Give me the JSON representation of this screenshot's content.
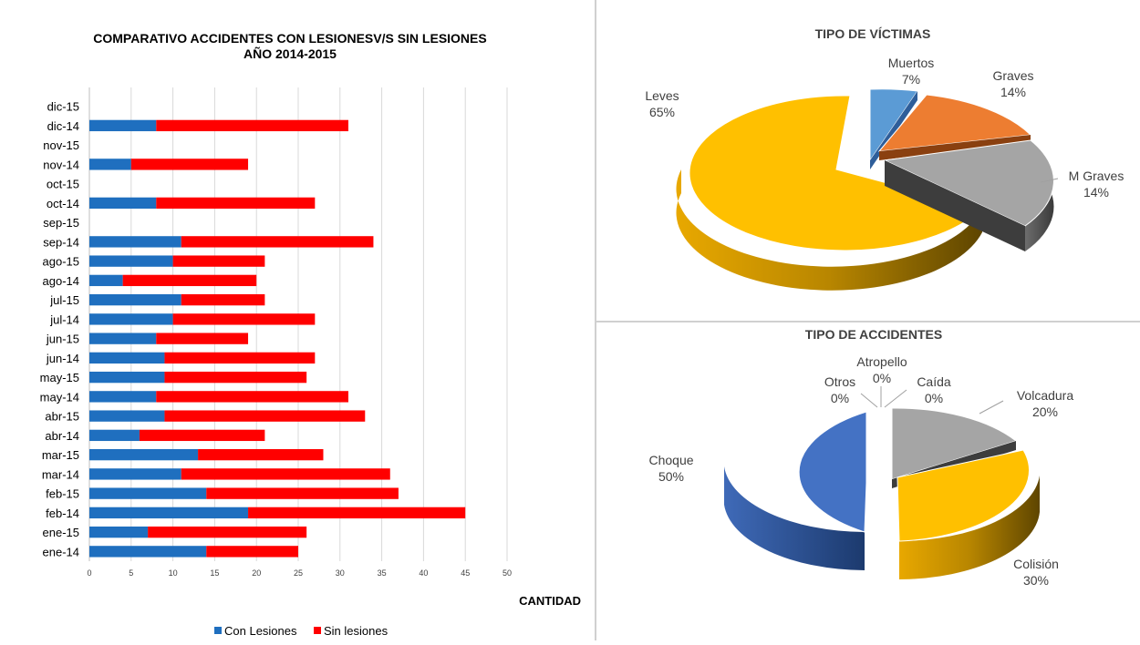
{
  "chart_data": [
    {
      "type": "bar",
      "orientation": "horizontal",
      "stacked": true,
      "title": "COMPARATIVO ACCIDENTES CON LESIONESV/S SIN LESIONES",
      "subtitle": "AÑO 2014-2015",
      "xlabel": "CANTIDAD",
      "xlim": [
        0,
        50
      ],
      "xticks": [
        0,
        5,
        10,
        15,
        20,
        25,
        30,
        35,
        40,
        45,
        50
      ],
      "grid": true,
      "legend": "bottom",
      "categories": [
        "ene-14",
        "ene-15",
        "feb-14",
        "feb-15",
        "mar-14",
        "mar-15",
        "abr-14",
        "abr-15",
        "may-14",
        "may-15",
        "jun-14",
        "jun-15",
        "jul-14",
        "jul-15",
        "ago-14",
        "ago-15",
        "sep-14",
        "sep-15",
        "oct-14",
        "oct-15",
        "nov-14",
        "nov-15",
        "dic-14",
        "dic-15"
      ],
      "series": [
        {
          "name": "Con Lesiones",
          "color": "#1f6fbf",
          "values": [
            14,
            7,
            19,
            14,
            11,
            13,
            6,
            9,
            8,
            9,
            9,
            8,
            10,
            11,
            4,
            10,
            11,
            0,
            8,
            0,
            5,
            0,
            8,
            0
          ]
        },
        {
          "name": "Sin lesiones",
          "color": "#ff0000",
          "values": [
            11,
            19,
            26,
            23,
            25,
            15,
            15,
            24,
            23,
            17,
            18,
            11,
            17,
            10,
            16,
            11,
            23,
            0,
            19,
            0,
            14,
            0,
            23,
            0
          ]
        }
      ]
    },
    {
      "type": "pie",
      "style": "3d-exploded",
      "title": "TIPO DE VÍCTIMAS",
      "slices": [
        {
          "label": "Muertos",
          "value": 7,
          "pct": "7%",
          "color": "#5b9bd5"
        },
        {
          "label": "Graves",
          "value": 14,
          "pct": "14%",
          "color": "#ed7d31"
        },
        {
          "label": "M Graves",
          "value": 14,
          "pct": "14%",
          "color": "#a5a5a5"
        },
        {
          "label": "Leves",
          "value": 65,
          "pct": "65%",
          "color": "#ffc000"
        }
      ]
    },
    {
      "type": "pie",
      "style": "3d-exploded",
      "title": "TIPO DE ACCIDENTES",
      "slices": [
        {
          "label": "Atropello",
          "value": 0,
          "pct": "0%",
          "color": "#5b9bd5"
        },
        {
          "label": "Caída",
          "value": 0,
          "pct": "0%",
          "color": "#ed7d31"
        },
        {
          "label": "Volcadura",
          "value": 20,
          "pct": "20%",
          "color": "#a5a5a5"
        },
        {
          "label": "Colisión",
          "value": 30,
          "pct": "30%",
          "color": "#ffc000"
        },
        {
          "label": "Choque",
          "value": 50,
          "pct": "50%",
          "color": "#4472c4"
        },
        {
          "label": "Otros",
          "value": 0,
          "pct": "0%",
          "color": "#70ad47"
        }
      ]
    }
  ]
}
